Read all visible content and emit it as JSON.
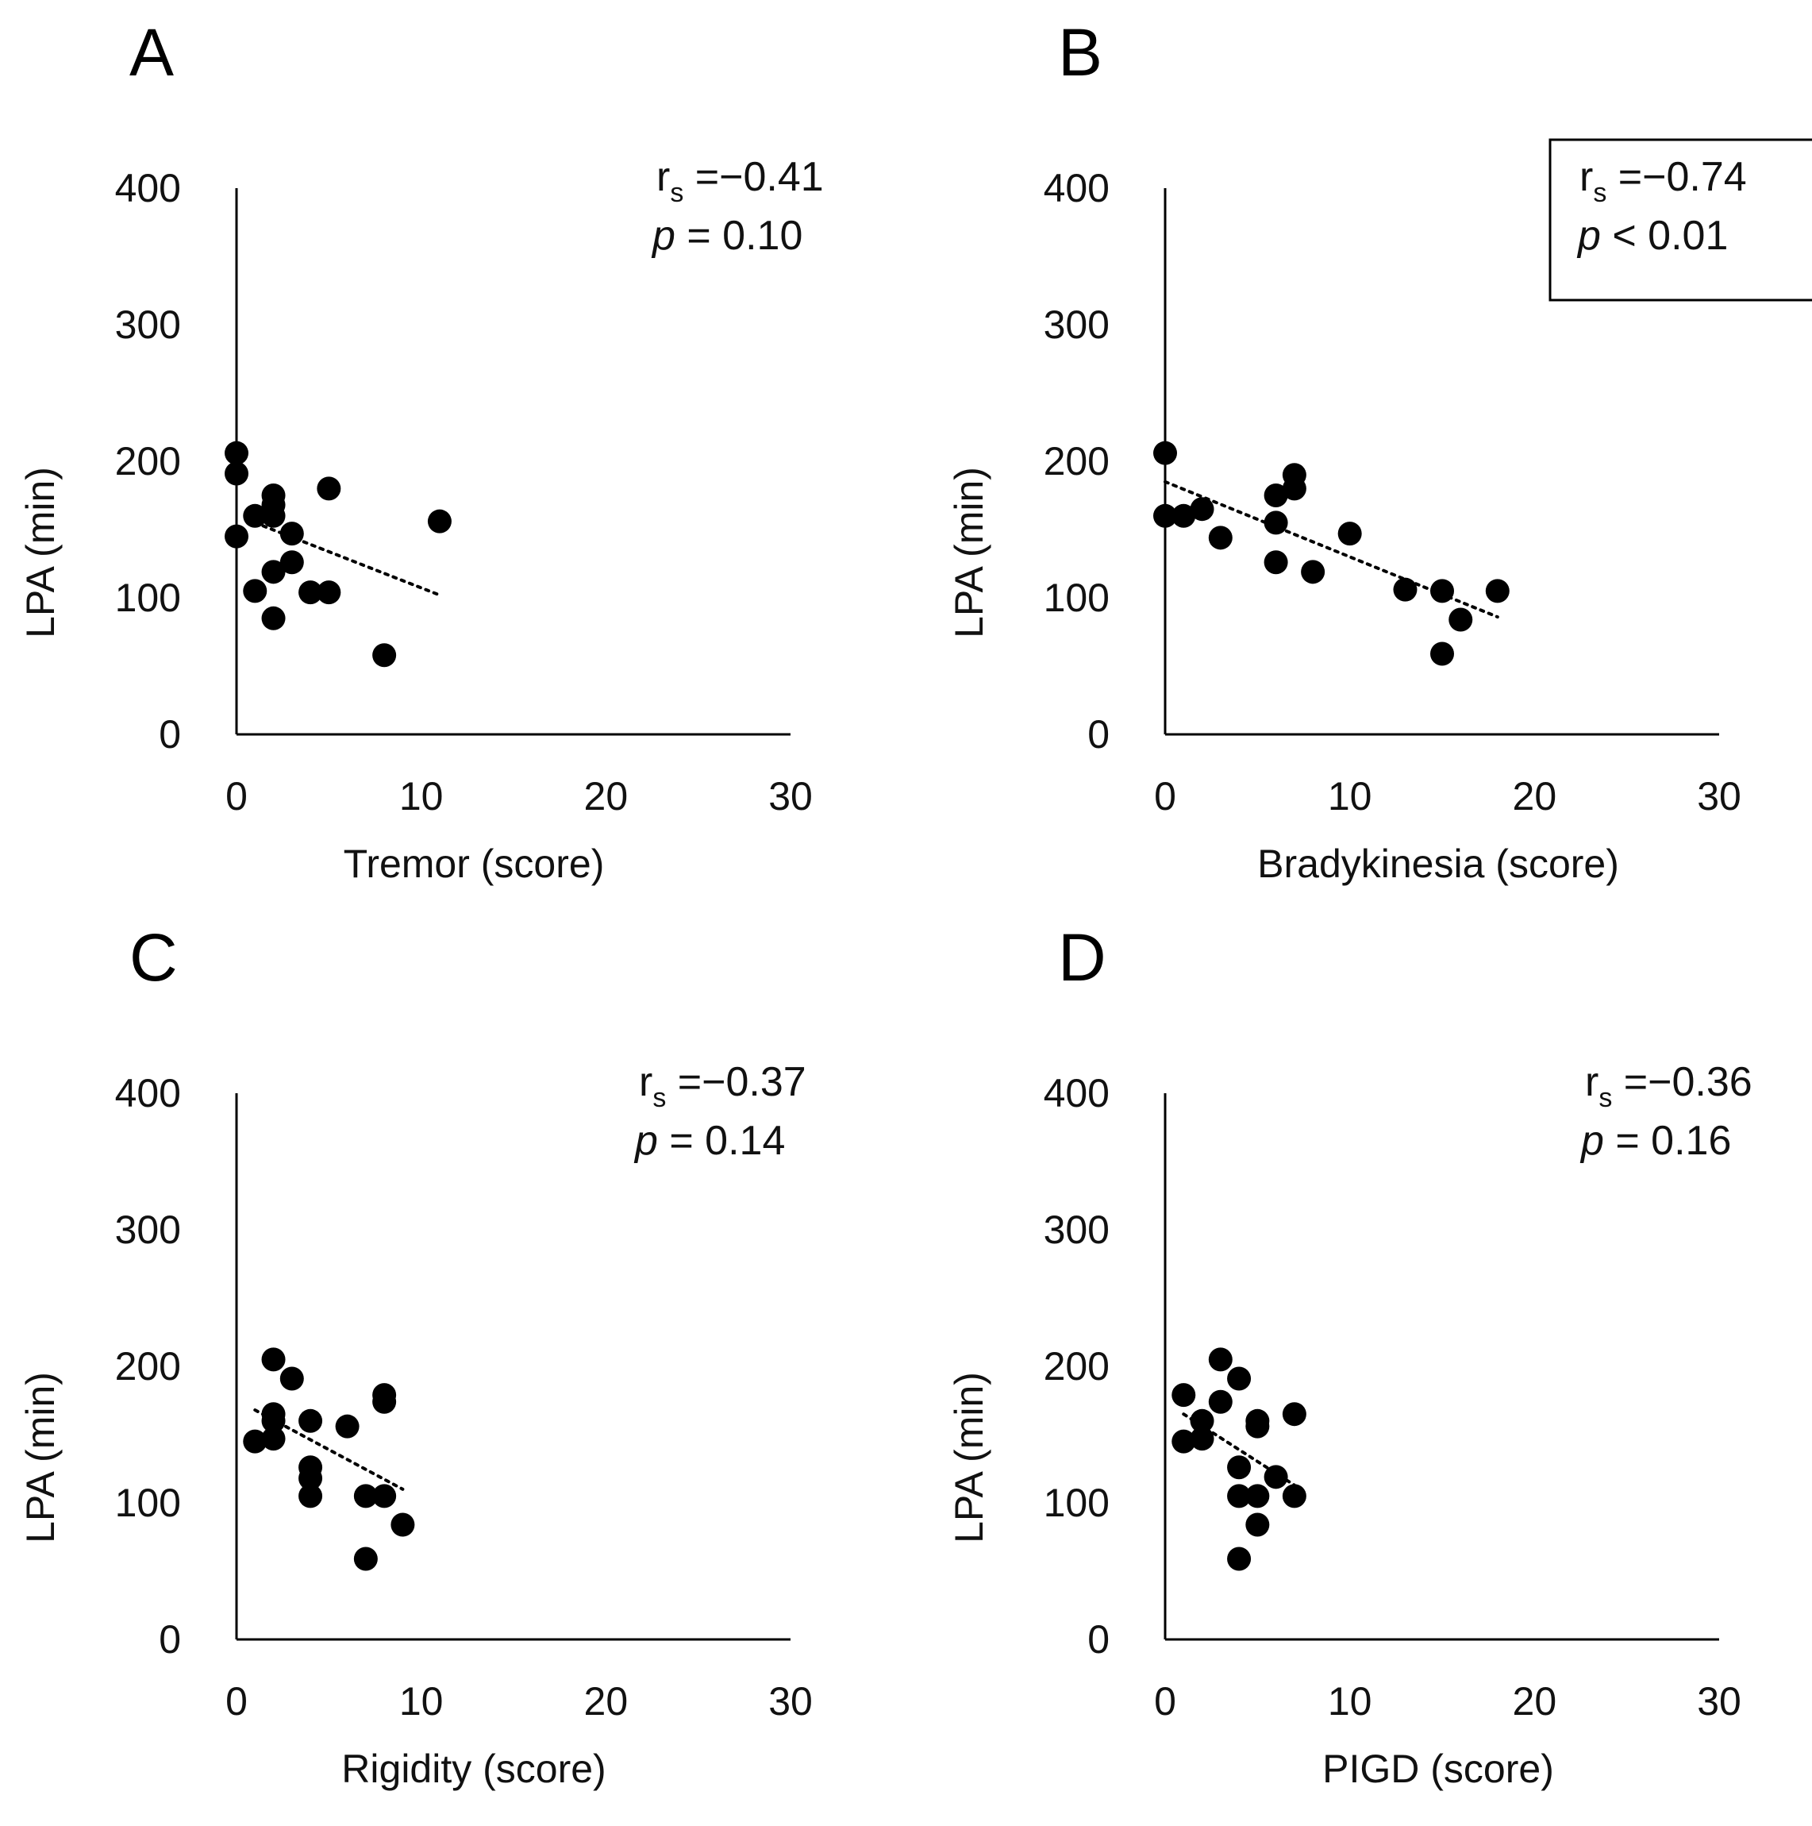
{
  "chart_data": [
    {
      "panel": "A",
      "type": "scatter",
      "xlabel": "Tremor (score)",
      "ylabel": "LPA (min)",
      "xlim": [
        0,
        30
      ],
      "ylim": [
        0,
        400
      ],
      "xticks": [
        "0",
        "10",
        "20",
        "30"
      ],
      "yticks": [
        "0",
        "100",
        "200",
        "300",
        "400"
      ],
      "points": [
        [
          0,
          206
        ],
        [
          0,
          191
        ],
        [
          0,
          145
        ],
        [
          1,
          160
        ],
        [
          1,
          105
        ],
        [
          2,
          175
        ],
        [
          2,
          168
        ],
        [
          2,
          160
        ],
        [
          2,
          119
        ],
        [
          2,
          85
        ],
        [
          3,
          147
        ],
        [
          3,
          126
        ],
        [
          4,
          104
        ],
        [
          5,
          180
        ],
        [
          5,
          104
        ],
        [
          8,
          58
        ],
        [
          11,
          156
        ]
      ],
      "trendline": {
        "x": [
          1,
          11
        ],
        "y": [
          155,
          102
        ],
        "style": "dotted"
      },
      "annotation": {
        "r_prefix": "r",
        "r_sub": "s",
        "r_value": " =−0.41",
        "p_label": "p",
        "p_value": " = 0.10",
        "boxed": false
      }
    },
    {
      "panel": "B",
      "type": "scatter",
      "xlabel": "Bradykinesia  (score)",
      "ylabel": "LPA (min)",
      "xlim": [
        0,
        30
      ],
      "ylim": [
        0,
        400
      ],
      "xticks": [
        "0",
        "10",
        "20",
        "30"
      ],
      "yticks": [
        "0",
        "100",
        "200",
        "300",
        "400"
      ],
      "points": [
        [
          0,
          206
        ],
        [
          0,
          160
        ],
        [
          1,
          160
        ],
        [
          2,
          165
        ],
        [
          3,
          144
        ],
        [
          6,
          175
        ],
        [
          6,
          155
        ],
        [
          6,
          126
        ],
        [
          7,
          190
        ],
        [
          7,
          180
        ],
        [
          8,
          119
        ],
        [
          10,
          147
        ],
        [
          13,
          106
        ],
        [
          15,
          105
        ],
        [
          15,
          59
        ],
        [
          16,
          84
        ],
        [
          18,
          105
        ]
      ],
      "trendline": {
        "x": [
          0,
          18
        ],
        "y": [
          185,
          86
        ],
        "style": "dotted"
      },
      "annotation": {
        "r_prefix": "r",
        "r_sub": "s",
        "r_value": " =−0.74",
        "p_label": "p",
        "p_value": " < 0.01",
        "boxed": true
      }
    },
    {
      "panel": "C",
      "type": "scatter",
      "xlabel": "Rigidity (score)",
      "ylabel": "LPA (min)",
      "xlim": [
        0,
        30
      ],
      "ylim": [
        0,
        400
      ],
      "xticks": [
        "0",
        "10",
        "20",
        "30"
      ],
      "yticks": [
        "0",
        "100",
        "200",
        "300",
        "400"
      ],
      "points": [
        [
          1,
          145
        ],
        [
          2,
          205
        ],
        [
          2,
          165
        ],
        [
          2,
          160
        ],
        [
          2,
          147
        ],
        [
          3,
          191
        ],
        [
          4,
          160
        ],
        [
          4,
          126
        ],
        [
          4,
          118
        ],
        [
          4,
          105
        ],
        [
          6,
          156
        ],
        [
          7,
          105
        ],
        [
          7,
          59
        ],
        [
          8,
          179
        ],
        [
          8,
          174
        ],
        [
          8,
          105
        ],
        [
          9,
          84
        ]
      ],
      "trendline": {
        "x": [
          1,
          9
        ],
        "y": [
          168,
          110
        ],
        "style": "dotted"
      },
      "annotation": {
        "r_prefix": "r",
        "r_sub": "s",
        "r_value": " =−0.37",
        "p_label": "p",
        "p_value": " = 0.14",
        "boxed": false
      }
    },
    {
      "panel": "D",
      "type": "scatter",
      "xlabel": "PIGD (score)",
      "ylabel": "LPA (min)",
      "xlim": [
        0,
        30
      ],
      "ylim": [
        0,
        400
      ],
      "xticks": [
        "0",
        "10",
        "20",
        "30"
      ],
      "yticks": [
        "0",
        "100",
        "200",
        "300",
        "400"
      ],
      "points": [
        [
          1,
          179
        ],
        [
          1,
          145
        ],
        [
          2,
          160
        ],
        [
          2,
          147
        ],
        [
          3,
          205
        ],
        [
          3,
          174
        ],
        [
          4,
          191
        ],
        [
          4,
          126
        ],
        [
          4,
          105
        ],
        [
          4,
          59
        ],
        [
          5,
          160
        ],
        [
          5,
          156
        ],
        [
          5,
          105
        ],
        [
          5,
          84
        ],
        [
          6,
          119
        ],
        [
          7,
          165
        ],
        [
          7,
          105
        ]
      ],
      "trendline": {
        "x": [
          1,
          7
        ],
        "y": [
          165,
          113
        ],
        "style": "dotted"
      },
      "annotation": {
        "r_prefix": "r",
        "r_sub": "s",
        "r_value": " =−0.36",
        "p_label": "p",
        "p_value": " = 0.16",
        "boxed": false
      }
    }
  ],
  "palette": {
    "marker": "#000000",
    "axis": "#000000",
    "text": "#111111"
  }
}
